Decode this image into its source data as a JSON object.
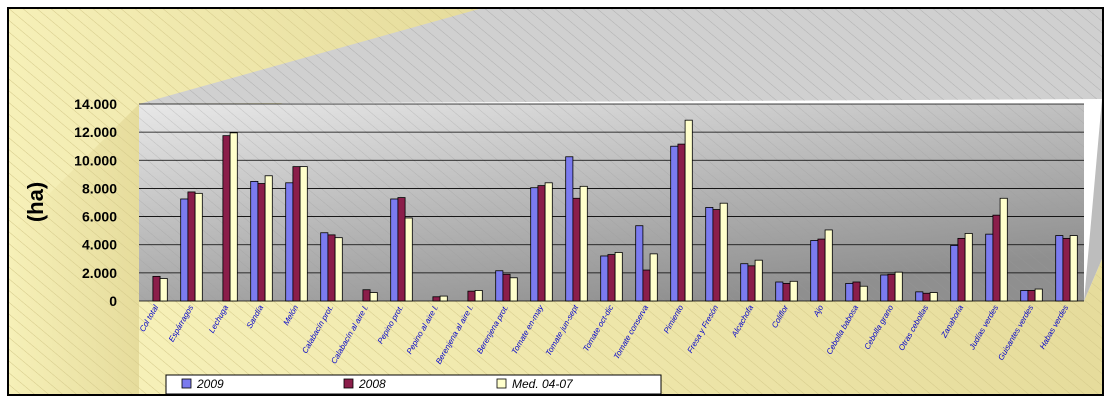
{
  "chart_data": {
    "type": "bar",
    "title": "",
    "xlabel": "",
    "ylabel": "(ha)",
    "ylim": [
      0,
      14000
    ],
    "yticks": [
      0,
      2000,
      4000,
      6000,
      8000,
      10000,
      12000,
      14000
    ],
    "ytick_labels": [
      "0",
      "2.000",
      "4.000",
      "6.000",
      "8.000",
      "10.000",
      "12.000",
      "14.000"
    ],
    "grid": true,
    "legend_position": "bottom-left",
    "categories": [
      "Col total",
      "Espárragos",
      "Lechuga",
      "Sandía",
      "Melón",
      "Calabacín prot.",
      "Calabacín al aire l.",
      "Pepino prot.",
      "Pepino al aire l.",
      "Berenjena al aire l.",
      "Berenjena prot.",
      "Tomate en-may",
      "Tomate jun-sept",
      "Tomate oct-dic",
      "Tomate conserva",
      "Pimiento",
      "Fresa y Fresón",
      "Alcachofa",
      "Coliflor",
      "Ajo",
      "Cebolla babosa",
      "Cebolla grano",
      "Otras cebollas",
      "Zanahoria",
      "Judías verdes",
      "Guisantes verdes",
      "Habas verdes"
    ],
    "series": [
      {
        "name": "2009",
        "color": "#7b7bef",
        "values": [
          0,
          7250,
          0,
          8500,
          8400,
          4850,
          0,
          7250,
          0,
          0,
          2150,
          8050,
          10250,
          3200,
          5350,
          11000,
          6650,
          2650,
          1350,
          4300,
          1250,
          1850,
          650,
          3950,
          4750,
          750,
          4650
        ]
      },
      {
        "name": "2008",
        "color": "#8b1e4a",
        "values": [
          1750,
          7750,
          11750,
          8350,
          9550,
          4700,
          800,
          7350,
          300,
          700,
          1900,
          8200,
          7300,
          3300,
          2200,
          11150,
          6500,
          2500,
          1250,
          4400,
          1350,
          1900,
          550,
          4450,
          6100,
          750,
          4450
        ]
      },
      {
        "name": "Med. 04-07",
        "color": "#ffffcc",
        "values": [
          1600,
          7650,
          11950,
          8900,
          9550,
          4500,
          600,
          5900,
          350,
          750,
          1650,
          8400,
          8150,
          3450,
          3350,
          12850,
          6950,
          2900,
          1400,
          5050,
          1050,
          2050,
          600,
          4800,
          7300,
          850,
          4650
        ]
      }
    ]
  }
}
